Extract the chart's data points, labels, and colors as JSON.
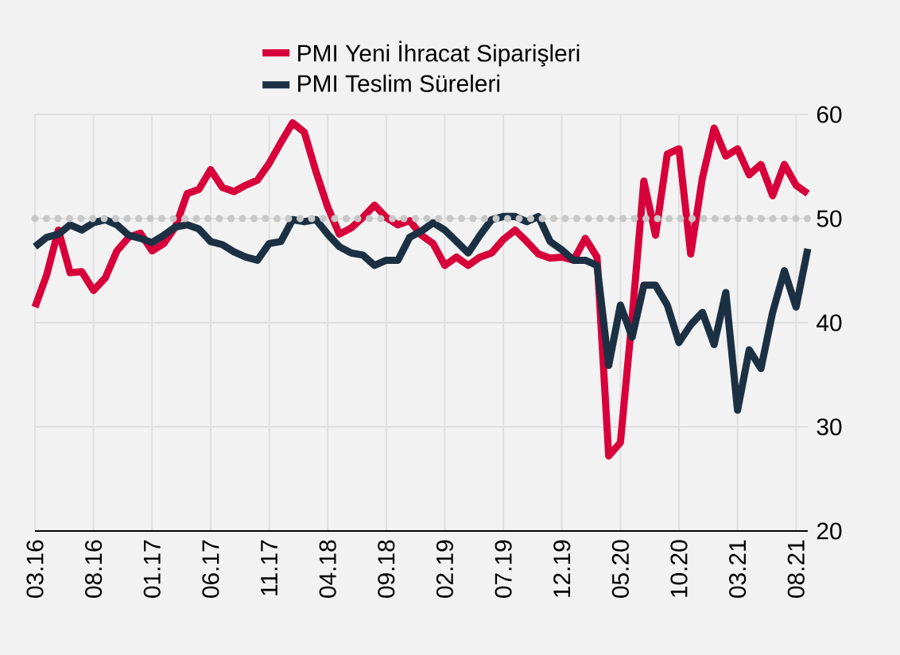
{
  "chart_data": {
    "type": "line",
    "categories": [
      "03.16",
      null,
      null,
      null,
      null,
      "08.16",
      null,
      null,
      null,
      null,
      "01.17",
      null,
      null,
      null,
      null,
      "06.17",
      null,
      null,
      null,
      null,
      "11.17",
      null,
      null,
      null,
      null,
      "04.18",
      null,
      null,
      null,
      null,
      "09.18",
      null,
      null,
      null,
      null,
      "02.19",
      null,
      null,
      null,
      null,
      "07.19",
      null,
      null,
      null,
      null,
      "12.19",
      null,
      null,
      null,
      null,
      "05.20",
      null,
      null,
      null,
      null,
      "10.20",
      null,
      null,
      null,
      null,
      "03.21",
      null,
      null,
      null,
      null,
      "08.21",
      null
    ],
    "series": [
      {
        "name": "PMI Yeni İhracat Siparişleri",
        "color": "#d7003a",
        "values": [
          41.5,
          44.6,
          48.9,
          44.8,
          44.9,
          43.1,
          44.3,
          46.9,
          48.2,
          48.6,
          46.9,
          47.6,
          49.2,
          52.4,
          52.8,
          54.7,
          53.0,
          52.6,
          53.2,
          53.7,
          55.3,
          57.3,
          59.2,
          58.3,
          54.5,
          51.1,
          48.5,
          49.1,
          50.1,
          51.3,
          50.1,
          49.4,
          49.8,
          48.4,
          47.6,
          45.5,
          46.3,
          45.5,
          46.3,
          46.7,
          48.0,
          48.9,
          47.8,
          46.6,
          46.2,
          46.3,
          46.0,
          48.1,
          46.3,
          27.2,
          28.5,
          40.5,
          53.6,
          48.4,
          56.2,
          56.7,
          46.6,
          53.9,
          58.7,
          56.0,
          56.7,
          54.2,
          55.2,
          52.2,
          55.2,
          53.2,
          52.4
        ]
      },
      {
        "name": "PMI Teslim Süreleri",
        "color": "#1c3044",
        "values": [
          47.3,
          48.2,
          48.5,
          49.4,
          48.9,
          49.6,
          49.9,
          49.4,
          48.4,
          48.1,
          47.7,
          48.4,
          49.2,
          49.4,
          49.0,
          47.8,
          47.5,
          46.8,
          46.3,
          46.0,
          47.6,
          47.8,
          49.9,
          49.7,
          49.9,
          48.5,
          47.3,
          46.7,
          46.5,
          45.5,
          46.0,
          46.0,
          48.2,
          48.8,
          49.6,
          48.9,
          47.8,
          46.7,
          48.4,
          49.9,
          50.2,
          50.2,
          49.7,
          50.2,
          47.8,
          47.0,
          46.0,
          46.0,
          45.5,
          35.9,
          41.7,
          38.6,
          43.6,
          43.6,
          41.7,
          38.1,
          39.8,
          41.0,
          37.9,
          42.9,
          31.6,
          37.4,
          35.6,
          41.0,
          45.0,
          41.5,
          47.1
        ]
      }
    ],
    "ylim": [
      20,
      60
    ],
    "yticks": [
      20,
      30,
      40,
      50,
      60
    ],
    "grid": true,
    "legend": "top",
    "marker": "none",
    "line_style": "solid",
    "ref_lines": [
      {
        "axis": "y",
        "value": 50,
        "color": "#c8c8c8",
        "line_style": "dotted"
      }
    ]
  }
}
